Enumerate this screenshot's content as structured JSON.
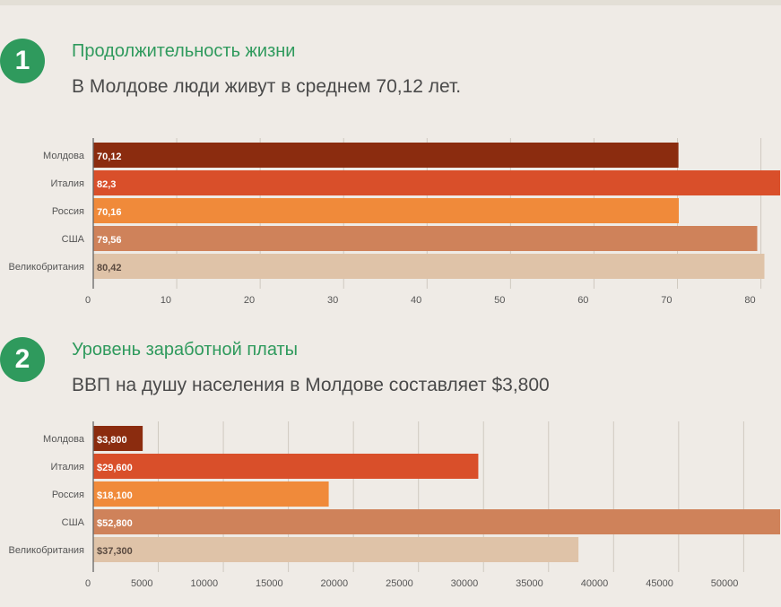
{
  "sections": [
    {
      "number": "1",
      "heading": "Продолжительность жизни",
      "subheading": "В Молдове люди живут в среднем 70,12 лет."
    },
    {
      "number": "2",
      "heading": "Уровень заработной платы",
      "subheading": "ВВП на душу населения в Молдове составляет $3,800"
    }
  ],
  "chart_data": [
    {
      "type": "bar",
      "orientation": "horizontal",
      "categories": [
        "Молдова",
        "Италия",
        "Россия",
        "США",
        "Великобритания"
      ],
      "values": [
        70.12,
        82.3,
        70.16,
        79.56,
        80.42
      ],
      "value_labels": [
        "70,12",
        "82,3",
        "70,16",
        "79,56",
        "80,42"
      ],
      "bar_colors": [
        "#8b2c0f",
        "#d94f2a",
        "#f08a3a",
        "#cf825a",
        "#dfc3a8"
      ],
      "label_colors": [
        "#ffffff",
        "#ffffff",
        "#ffffff",
        "#ffffff",
        "#5a4a40"
      ],
      "x_ticks": [
        "0",
        "10",
        "20",
        "30",
        "40",
        "50",
        "60",
        "70",
        "80"
      ],
      "xlim": [
        0,
        82.3
      ],
      "grid": true
    },
    {
      "type": "bar",
      "orientation": "horizontal",
      "categories": [
        "Молдова",
        "Италия",
        "Россия",
        "США",
        "Великобритания"
      ],
      "values": [
        3800,
        29600,
        18100,
        52800,
        37300
      ],
      "value_labels": [
        "$3,800",
        "$29,600",
        "$18,100",
        "$52,800",
        "$37,300"
      ],
      "bar_colors": [
        "#8b2c0f",
        "#d94f2a",
        "#f08a3a",
        "#cf825a",
        "#dfc3a8"
      ],
      "label_colors": [
        "#ffffff",
        "#ffffff",
        "#ffffff",
        "#ffffff",
        "#5a4a40"
      ],
      "x_ticks": [
        "0",
        "5000",
        "10000",
        "15000",
        "20000",
        "25000",
        "30000",
        "35000",
        "40000",
        "45000",
        "50000"
      ],
      "xlim": [
        0,
        52800
      ],
      "grid": true
    }
  ]
}
